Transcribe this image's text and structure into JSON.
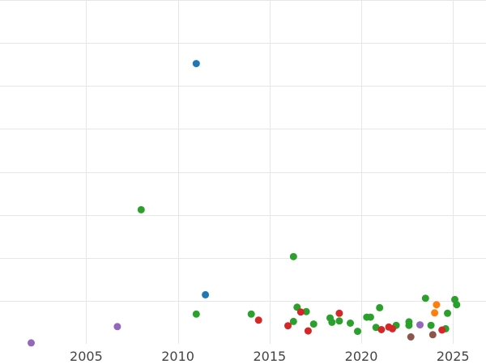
{
  "chart_data": {
    "type": "scatter",
    "title": "",
    "xlabel": "",
    "ylabel": "",
    "x_axis": "date-year",
    "xlim": [
      2000.3,
      2026.8
    ],
    "ylim": [
      0,
      8
    ],
    "xticks": [
      2005,
      2010,
      2015,
      2020,
      2025
    ],
    "xtick_labels": [
      "2005",
      "2010",
      "2015",
      "2020",
      "2025"
    ],
    "y_grid_values": [
      1,
      2,
      3,
      4,
      5,
      6,
      7,
      8
    ],
    "y_tick_labels_visible": false,
    "grid": true,
    "legend": "none",
    "series": [
      {
        "color": "#1f77b4",
        "points": [
          {
            "x": 2011.0,
            "y": 6.52
          },
          {
            "x": 2011.5,
            "y": 1.14
          }
        ]
      },
      {
        "color": "#2ca02c",
        "points": [
          {
            "x": 2008.0,
            "y": 3.12
          },
          {
            "x": 2011.0,
            "y": 0.69
          },
          {
            "x": 2014.0,
            "y": 0.69
          },
          {
            "x": 2016.3,
            "y": 2.03
          },
          {
            "x": 2016.3,
            "y": 0.52
          },
          {
            "x": 2016.5,
            "y": 0.85
          },
          {
            "x": 2017.0,
            "y": 0.75
          },
          {
            "x": 2017.4,
            "y": 0.46
          },
          {
            "x": 2018.3,
            "y": 0.6
          },
          {
            "x": 2018.4,
            "y": 0.5
          },
          {
            "x": 2018.8,
            "y": 0.53
          },
          {
            "x": 2019.4,
            "y": 0.48
          },
          {
            "x": 2019.8,
            "y": 0.29
          },
          {
            "x": 2020.3,
            "y": 0.62
          },
          {
            "x": 2020.5,
            "y": 0.62
          },
          {
            "x": 2020.8,
            "y": 0.38
          },
          {
            "x": 2021.0,
            "y": 0.84
          },
          {
            "x": 2021.9,
            "y": 0.43
          },
          {
            "x": 2022.6,
            "y": 0.51
          },
          {
            "x": 2022.6,
            "y": 0.43
          },
          {
            "x": 2023.5,
            "y": 1.06
          },
          {
            "x": 2023.8,
            "y": 0.43
          },
          {
            "x": 2024.6,
            "y": 0.35
          },
          {
            "x": 2024.7,
            "y": 0.71
          },
          {
            "x": 2025.1,
            "y": 1.03
          },
          {
            "x": 2025.2,
            "y": 0.91
          }
        ]
      },
      {
        "color": "#d62728",
        "points": [
          {
            "x": 2014.4,
            "y": 0.55
          },
          {
            "x": 2016.0,
            "y": 0.42
          },
          {
            "x": 2016.7,
            "y": 0.74
          },
          {
            "x": 2017.1,
            "y": 0.3
          },
          {
            "x": 2018.8,
            "y": 0.71
          },
          {
            "x": 2021.1,
            "y": 0.33
          },
          {
            "x": 2021.5,
            "y": 0.39
          },
          {
            "x": 2021.7,
            "y": 0.35
          },
          {
            "x": 2024.4,
            "y": 0.32
          }
        ]
      },
      {
        "color": "#9467bd",
        "points": [
          {
            "x": 2002.0,
            "y": 0.02
          },
          {
            "x": 2006.7,
            "y": 0.4
          },
          {
            "x": 2023.2,
            "y": 0.44
          }
        ]
      },
      {
        "color": "#ff7f0e",
        "points": [
          {
            "x": 2024.1,
            "y": 0.91
          },
          {
            "x": 2024.0,
            "y": 0.72
          }
        ]
      },
      {
        "color": "#8c564b",
        "points": [
          {
            "x": 2022.7,
            "y": 0.16
          },
          {
            "x": 2023.9,
            "y": 0.21
          }
        ]
      }
    ]
  }
}
